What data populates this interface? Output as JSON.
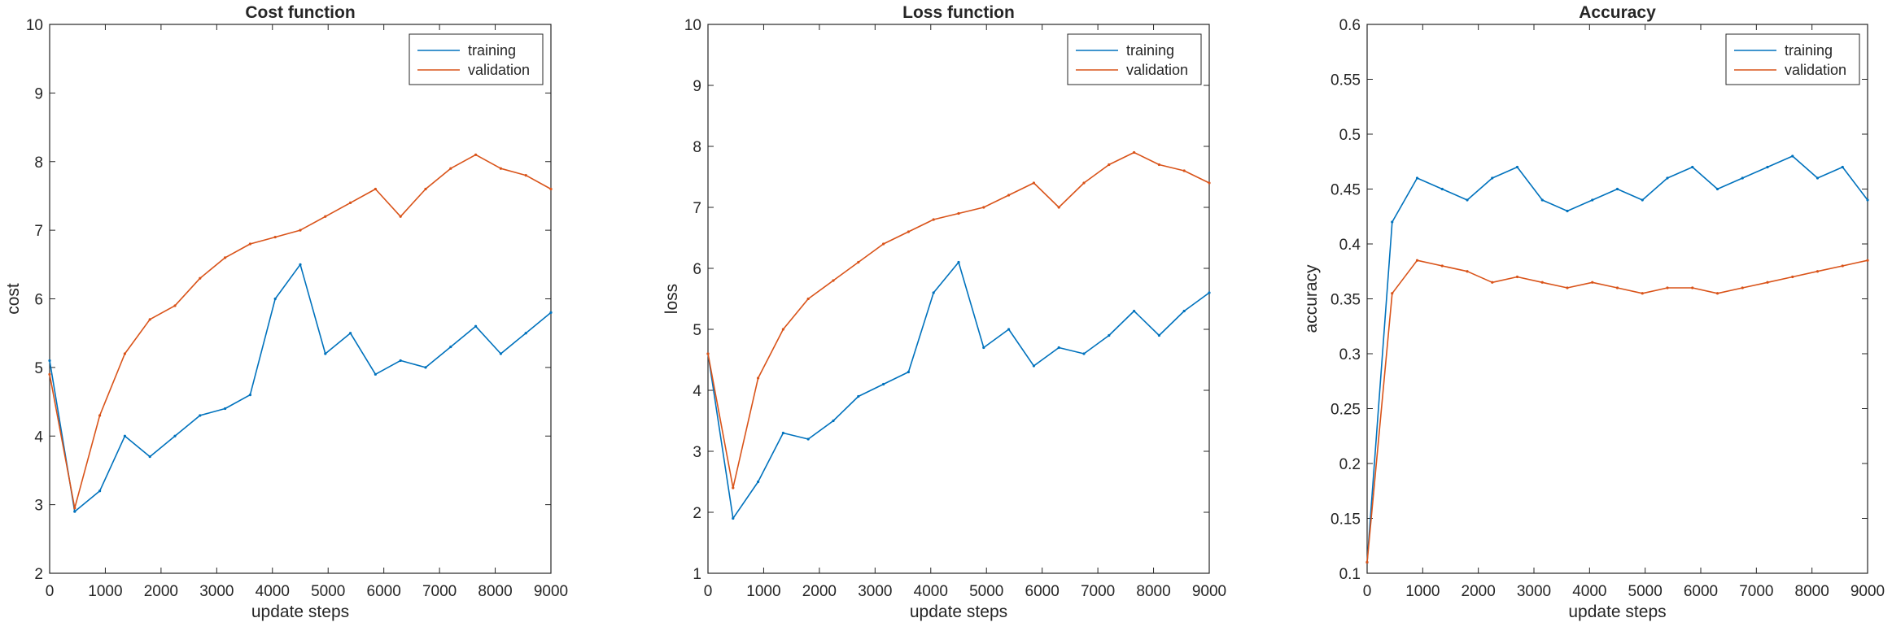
{
  "colors": {
    "training": "#0072BD",
    "validation": "#D95319",
    "axis": "#262626"
  },
  "chart_data": [
    {
      "type": "line",
      "title": "Cost function",
      "xlabel": "update steps",
      "ylabel": "cost",
      "xlim": [
        0,
        9000
      ],
      "ylim": [
        2,
        10
      ],
      "xticks": [
        "0",
        "1000",
        "2000",
        "3000",
        "4000",
        "5000",
        "6000",
        "7000",
        "8000",
        "9000"
      ],
      "yticks": [
        "2",
        "3",
        "4",
        "5",
        "6",
        "7",
        "8",
        "9",
        "10"
      ],
      "grid": false,
      "legend_location": "top-right",
      "x": [
        0,
        450,
        900,
        1350,
        1800,
        2250,
        2700,
        3150,
        3600,
        4050,
        4500,
        4950,
        5400,
        5850,
        6300,
        6750,
        7200,
        7650,
        8100,
        8550,
        9000
      ],
      "series": [
        {
          "name": "training",
          "values": [
            5.1,
            2.9,
            3.2,
            4.0,
            3.7,
            4.0,
            4.3,
            4.4,
            4.6,
            6.0,
            6.5,
            5.2,
            5.5,
            4.9,
            5.1,
            5.0,
            5.3,
            5.6,
            5.2,
            5.5,
            5.8
          ]
        },
        {
          "name": "validation",
          "values": [
            4.9,
            2.95,
            4.3,
            5.2,
            5.7,
            5.9,
            6.3,
            6.6,
            6.8,
            6.9,
            7.0,
            7.2,
            7.4,
            7.6,
            7.2,
            7.6,
            7.9,
            8.1,
            7.9,
            7.8,
            7.6
          ]
        }
      ]
    },
    {
      "type": "line",
      "title": "Loss function",
      "xlabel": "update steps",
      "ylabel": "loss",
      "xlim": [
        0,
        9000
      ],
      "ylim": [
        1,
        10
      ],
      "xticks": [
        "0",
        "1000",
        "2000",
        "3000",
        "4000",
        "5000",
        "6000",
        "7000",
        "8000",
        "9000"
      ],
      "yticks": [
        "1",
        "2",
        "3",
        "4",
        "5",
        "6",
        "7",
        "8",
        "9",
        "10"
      ],
      "grid": false,
      "legend_location": "top-right",
      "x": [
        0,
        450,
        900,
        1350,
        1800,
        2250,
        2700,
        3150,
        3600,
        4050,
        4500,
        4950,
        5400,
        5850,
        6300,
        6750,
        7200,
        7650,
        8100,
        8550,
        9000
      ],
      "series": [
        {
          "name": "training",
          "values": [
            4.6,
            1.9,
            2.5,
            3.3,
            3.2,
            3.5,
            3.9,
            4.1,
            4.3,
            5.6,
            6.1,
            4.7,
            5.0,
            4.4,
            4.7,
            4.6,
            4.9,
            5.3,
            4.9,
            5.3,
            5.6
          ]
        },
        {
          "name": "validation",
          "values": [
            4.6,
            2.4,
            4.2,
            5.0,
            5.5,
            5.8,
            6.1,
            6.4,
            6.6,
            6.8,
            6.9,
            7.0,
            7.2,
            7.4,
            7.0,
            7.4,
            7.7,
            7.9,
            7.7,
            7.6,
            7.4
          ]
        }
      ]
    },
    {
      "type": "line",
      "title": "Accuracy",
      "xlabel": "update steps",
      "ylabel": "accuracy",
      "xlim": [
        0,
        9000
      ],
      "ylim": [
        0.1,
        0.6
      ],
      "xticks": [
        "0",
        "1000",
        "2000",
        "3000",
        "4000",
        "5000",
        "6000",
        "7000",
        "8000",
        "9000"
      ],
      "yticks": [
        "0.1",
        "0.15",
        "0.2",
        "0.25",
        "0.3",
        "0.35",
        "0.4",
        "0.45",
        "0.5",
        "0.55",
        "0.6"
      ],
      "grid": false,
      "legend_location": "top-right",
      "x": [
        0,
        450,
        900,
        1350,
        1800,
        2250,
        2700,
        3150,
        3600,
        4050,
        4500,
        4950,
        5400,
        5850,
        6300,
        6750,
        7200,
        7650,
        8100,
        8550,
        9000
      ],
      "series": [
        {
          "name": "training",
          "values": [
            0.11,
            0.42,
            0.46,
            0.45,
            0.44,
            0.46,
            0.47,
            0.44,
            0.43,
            0.44,
            0.45,
            0.44,
            0.46,
            0.47,
            0.45,
            0.46,
            0.47,
            0.48,
            0.46,
            0.47,
            0.44
          ]
        },
        {
          "name": "validation",
          "values": [
            0.11,
            0.355,
            0.385,
            0.38,
            0.375,
            0.365,
            0.37,
            0.365,
            0.36,
            0.365,
            0.36,
            0.355,
            0.36,
            0.36,
            0.355,
            0.36,
            0.365,
            0.37,
            0.375,
            0.38,
            0.385
          ]
        }
      ]
    }
  ]
}
